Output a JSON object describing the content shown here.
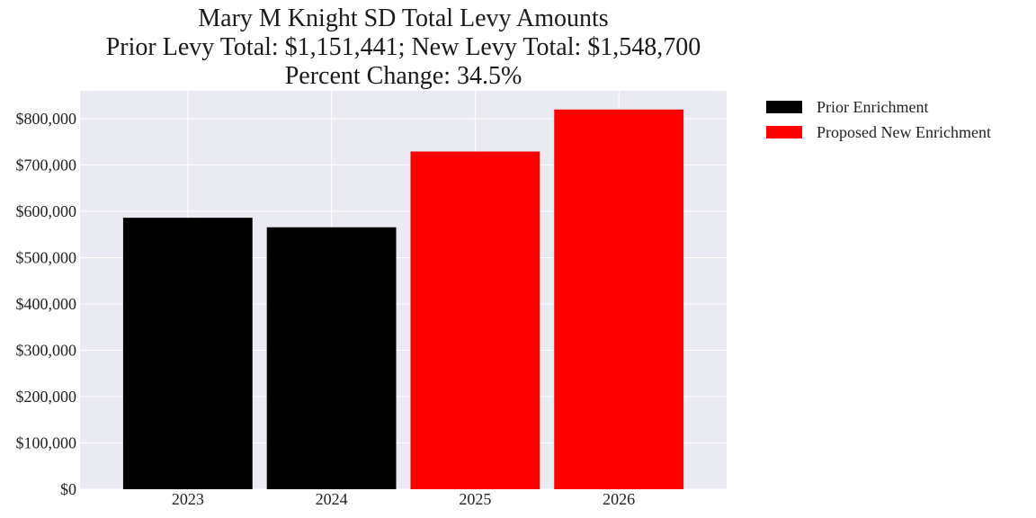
{
  "chart_data": {
    "type": "bar",
    "title": [
      "Mary M Knight SD Total Levy Amounts",
      "Prior Levy Total:  $1,151,441; New Levy Total: $1,548,700",
      "Percent Change: 34.5%"
    ],
    "categories": [
      "2023",
      "2024",
      "2025",
      "2026"
    ],
    "values": [
      586000,
      565441,
      729000,
      819700
    ],
    "bar_series": [
      "Prior Enrichment",
      "Prior Enrichment",
      "Proposed New Enrichment",
      "Proposed New Enrichment"
    ],
    "series": [
      {
        "name": "Prior Enrichment",
        "color": "#000000"
      },
      {
        "name": "Proposed New Enrichment",
        "color": "#ff0000"
      }
    ],
    "ylim": [
      0,
      860000
    ],
    "yticks": [
      0,
      100000,
      200000,
      300000,
      400000,
      500000,
      600000,
      700000,
      800000
    ],
    "ytick_labels": [
      "$0",
      "$100,000",
      "$200,000",
      "$300,000",
      "$400,000",
      "$500,000",
      "$600,000",
      "$700,000",
      "$800,000"
    ],
    "grid": true,
    "legend_position": "outside-top-right"
  }
}
